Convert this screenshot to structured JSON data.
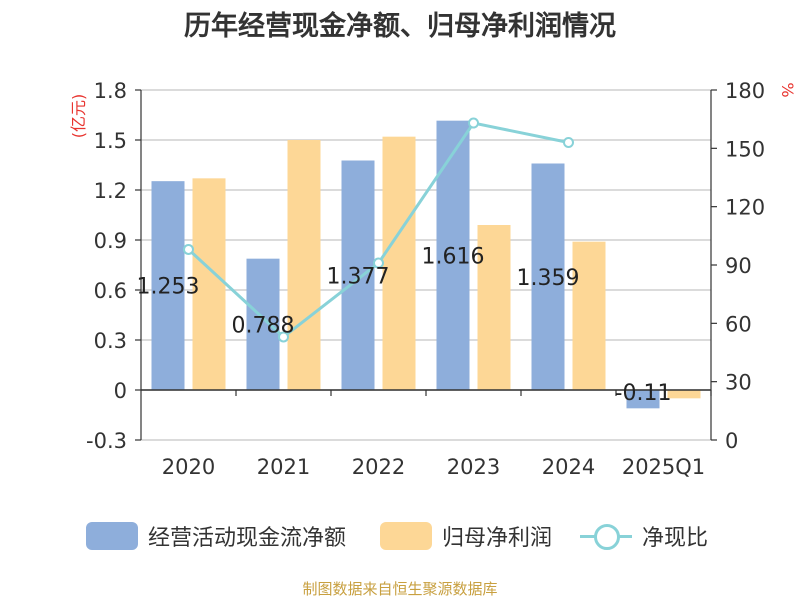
{
  "title": "历年经营现金净额、归母净利润情况",
  "source_text": "制图数据来自恒生聚源数据库",
  "colors": {
    "ocf": "#8eaedb",
    "profit": "#fdd796",
    "ratio": "#88d2d8",
    "left_unit": "#e8342f",
    "right_unit": "#e8342f",
    "source": "#c8a040"
  },
  "chart_data": {
    "type": "bar+line",
    "title": "历年经营现金净额、归母净利润情况",
    "categories": [
      "2020",
      "2021",
      "2022",
      "2023",
      "2024",
      "2025Q1"
    ],
    "left_axis": {
      "unit_label": "(亿元)",
      "range": [
        -0.3,
        1.8
      ],
      "ticks": [
        "1.8",
        "1.5",
        "1.2",
        "0.9",
        "0.6",
        "0.3",
        "0",
        "-0.3"
      ],
      "tick_values": [
        1.8,
        1.5,
        1.2,
        0.9,
        0.6,
        0.3,
        0,
        -0.3
      ]
    },
    "right_axis": {
      "unit_label": "%",
      "range": [
        0,
        180
      ],
      "ticks": [
        "180",
        "150",
        "120",
        "90",
        "60",
        "30",
        "0"
      ],
      "tick_values": [
        180,
        150,
        120,
        90,
        60,
        30,
        0
      ]
    },
    "series": [
      {
        "name": "经营活动现金流净额",
        "kind": "bar",
        "axis": "left",
        "values": [
          1.253,
          0.788,
          1.377,
          1.616,
          1.359,
          -0.11
        ],
        "labels": [
          "1.253",
          "0.788",
          "1.377",
          "1.616",
          "1.359",
          "-0.11"
        ]
      },
      {
        "name": "归母净利润",
        "kind": "bar",
        "axis": "left",
        "values": [
          1.27,
          1.5,
          1.52,
          0.99,
          0.89,
          -0.05
        ],
        "labels": []
      },
      {
        "name": "净现比",
        "kind": "line",
        "axis": "right",
        "values": [
          98,
          53,
          91,
          163,
          153,
          null
        ],
        "labels": []
      }
    ],
    "legend": [
      "经营活动现金流净额",
      "归母净利润",
      "净现比"
    ],
    "legend_position": "bottom"
  }
}
